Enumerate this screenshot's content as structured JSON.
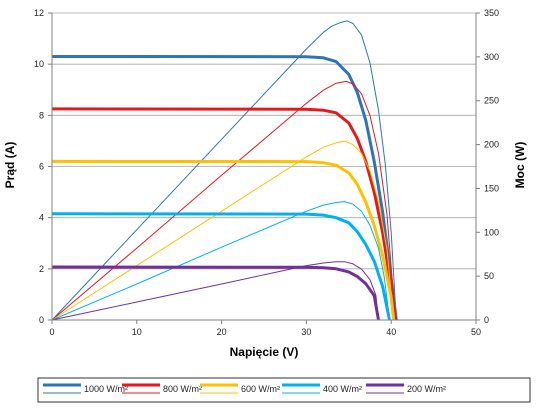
{
  "chart_data": {
    "type": "line",
    "title": "",
    "xlabel": "Napięcie (V)",
    "ylabel": "Prąd (A)",
    "y2label": "Moc (W)",
    "xlim": [
      0,
      50
    ],
    "ylim": [
      0,
      12
    ],
    "y2lim": [
      0,
      350
    ],
    "x_ticks": [
      0,
      10,
      20,
      30,
      40,
      50
    ],
    "y_ticks": [
      0,
      2,
      4,
      6,
      8,
      10,
      12
    ],
    "y2_ticks": [
      0,
      50,
      100,
      150,
      200,
      250,
      300,
      350
    ],
    "grid": "horizontal",
    "legend_position": "bottom",
    "series": [
      {
        "name": "1000 W/m²",
        "color": "#2e75b6",
        "current": {
          "x": [
            0,
            30,
            32,
            33.5,
            35,
            36,
            37,
            38,
            39,
            40,
            40.6
          ],
          "y": [
            10.3,
            10.29,
            10.25,
            10.1,
            9.6,
            8.9,
            7.8,
            6.2,
            4.2,
            1.6,
            0
          ]
        },
        "power": {
          "x": [
            0,
            10,
            20,
            30,
            32,
            33,
            34,
            34.8,
            35.5,
            36.5,
            37.5,
            38.5,
            39.3,
            40,
            40.6
          ],
          "y": [
            0,
            103,
            206,
            309,
            328,
            335,
            339,
            341,
            338,
            325,
            293,
            239,
            177,
            100,
            0
          ]
        }
      },
      {
        "name": "800 W/m²",
        "color": "#e31a1c",
        "current": {
          "x": [
            0,
            30,
            32,
            33.5,
            35,
            36,
            37,
            38,
            39,
            40,
            40.5
          ],
          "y": [
            8.25,
            8.24,
            8.2,
            8.1,
            7.7,
            7.1,
            6.2,
            5.0,
            3.4,
            1.3,
            0
          ]
        },
        "power": {
          "x": [
            0,
            10,
            20,
            30,
            32,
            33.5,
            34.7,
            35.5,
            36.5,
            37.5,
            38.5,
            39.5,
            40.5
          ],
          "y": [
            0,
            82,
            165,
            247,
            262,
            270,
            272,
            269,
            258,
            233,
            190,
            120,
            0
          ]
        }
      },
      {
        "name": "600 W/m²",
        "color": "#ffc000",
        "current": {
          "x": [
            0,
            30,
            32,
            33.5,
            35,
            36,
            37,
            38,
            39,
            40,
            40.3
          ],
          "y": [
            6.2,
            6.19,
            6.15,
            6.05,
            5.75,
            5.3,
            4.6,
            3.7,
            2.5,
            0.9,
            0
          ]
        },
        "power": {
          "x": [
            0,
            10,
            20,
            30,
            32,
            33.5,
            34.5,
            35.5,
            36.5,
            37.5,
            38.5,
            39.5,
            40.3
          ],
          "y": [
            0,
            62,
            124,
            186,
            197,
            202,
            204,
            200,
            190,
            170,
            135,
            80,
            0
          ]
        }
      },
      {
        "name": "400 W/m²",
        "color": "#00b0f0",
        "current": {
          "x": [
            0,
            30,
            32,
            33.5,
            35,
            36,
            37,
            38,
            39,
            39.8
          ],
          "y": [
            4.15,
            4.14,
            4.1,
            4.0,
            3.8,
            3.45,
            2.95,
            2.3,
            1.3,
            0
          ]
        },
        "power": {
          "x": [
            0,
            10,
            20,
            30,
            32,
            33.5,
            34.5,
            35.5,
            36.5,
            37.5,
            38.5,
            39.2,
            39.8
          ],
          "y": [
            0,
            41,
            83,
            124,
            131,
            134,
            135,
            132,
            124,
            108,
            82,
            48,
            0
          ]
        }
      },
      {
        "name": "200 W/m²",
        "color": "#7030a0",
        "current": {
          "x": [
            0,
            30,
            32,
            33.5,
            35,
            36,
            37,
            38,
            38.5
          ],
          "y": [
            2.07,
            2.06,
            2.04,
            2.0,
            1.88,
            1.7,
            1.42,
            0.95,
            0
          ]
        },
        "power": {
          "x": [
            0,
            10,
            20,
            30,
            32,
            33.5,
            34.5,
            35.5,
            36.5,
            37.5,
            38.2,
            38.5
          ],
          "y": [
            0,
            20.5,
            41,
            62,
            65,
            66.5,
            66.5,
            64,
            58,
            46,
            28,
            0
          ]
        }
      }
    ]
  }
}
